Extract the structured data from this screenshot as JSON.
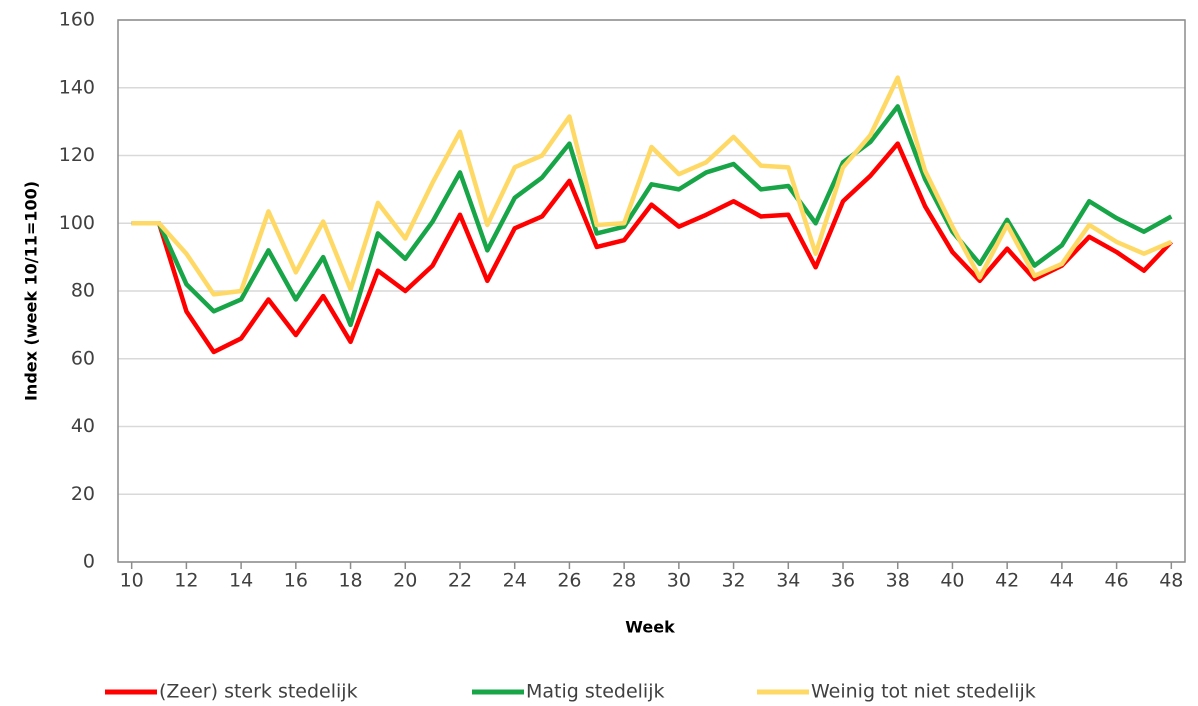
{
  "chart_data": {
    "type": "line",
    "xlabel": "Week",
    "ylabel": "Index (week 10/11=100)",
    "x": [
      10,
      11,
      12,
      13,
      14,
      15,
      16,
      17,
      18,
      19,
      20,
      21,
      22,
      23,
      24,
      25,
      26,
      27,
      28,
      29,
      30,
      31,
      32,
      33,
      34,
      35,
      36,
      37,
      38,
      39,
      40,
      41,
      42,
      43,
      44,
      45,
      46,
      47,
      48
    ],
    "series": [
      {
        "name": "(Zeer) sterk stedelijk",
        "color": "#ff0000",
        "values": [
          100,
          100,
          74,
          62,
          66,
          77.5,
          67,
          78.5,
          65,
          86,
          80,
          87.5,
          102.5,
          83,
          98.5,
          102,
          112.5,
          93,
          95,
          105.5,
          99,
          102.5,
          106.5,
          102,
          102.5,
          87,
          106.5,
          114,
          123.5,
          105,
          91.5,
          83,
          92.5,
          83.5,
          87.5,
          96,
          91.5,
          86,
          94.5
        ]
      },
      {
        "name": "Matig stedelijk",
        "color": "#17a548",
        "values": [
          100,
          100,
          82,
          74,
          77.5,
          92,
          77.5,
          90,
          70,
          97,
          89.5,
          100.5,
          115,
          92,
          107.5,
          113.5,
          123.5,
          97,
          99,
          111.5,
          110,
          115,
          117.5,
          110,
          111,
          100,
          118,
          124,
          134.5,
          113,
          97.5,
          88,
          101,
          87.5,
          93.5,
          106.5,
          101.5,
          97.5,
          102
        ]
      },
      {
        "name": "Weinig tot niet stedelijk",
        "color": "#ffd966",
        "values": [
          100,
          100,
          91,
          79,
          80,
          103.5,
          85.5,
          100.5,
          80.5,
          106,
          95.5,
          112,
          127,
          99.5,
          116.5,
          120,
          131.5,
          99.5,
          100,
          122.5,
          114.5,
          118,
          125.5,
          117,
          116.5,
          91,
          116.5,
          126,
          143,
          115.5,
          99,
          84,
          99.5,
          84.5,
          88,
          99.5,
          94.5,
          91,
          94.5
        ]
      }
    ],
    "xlim": [
      9.5,
      48.5
    ],
    "xticks": [
      10,
      12,
      14,
      16,
      18,
      20,
      22,
      24,
      26,
      28,
      30,
      32,
      34,
      36,
      38,
      40,
      42,
      44,
      46,
      48
    ],
    "ylim": [
      0,
      160
    ],
    "yticks": [
      0,
      20,
      40,
      60,
      80,
      100,
      120,
      140,
      160
    ],
    "grid": true,
    "legend": "bottom"
  }
}
